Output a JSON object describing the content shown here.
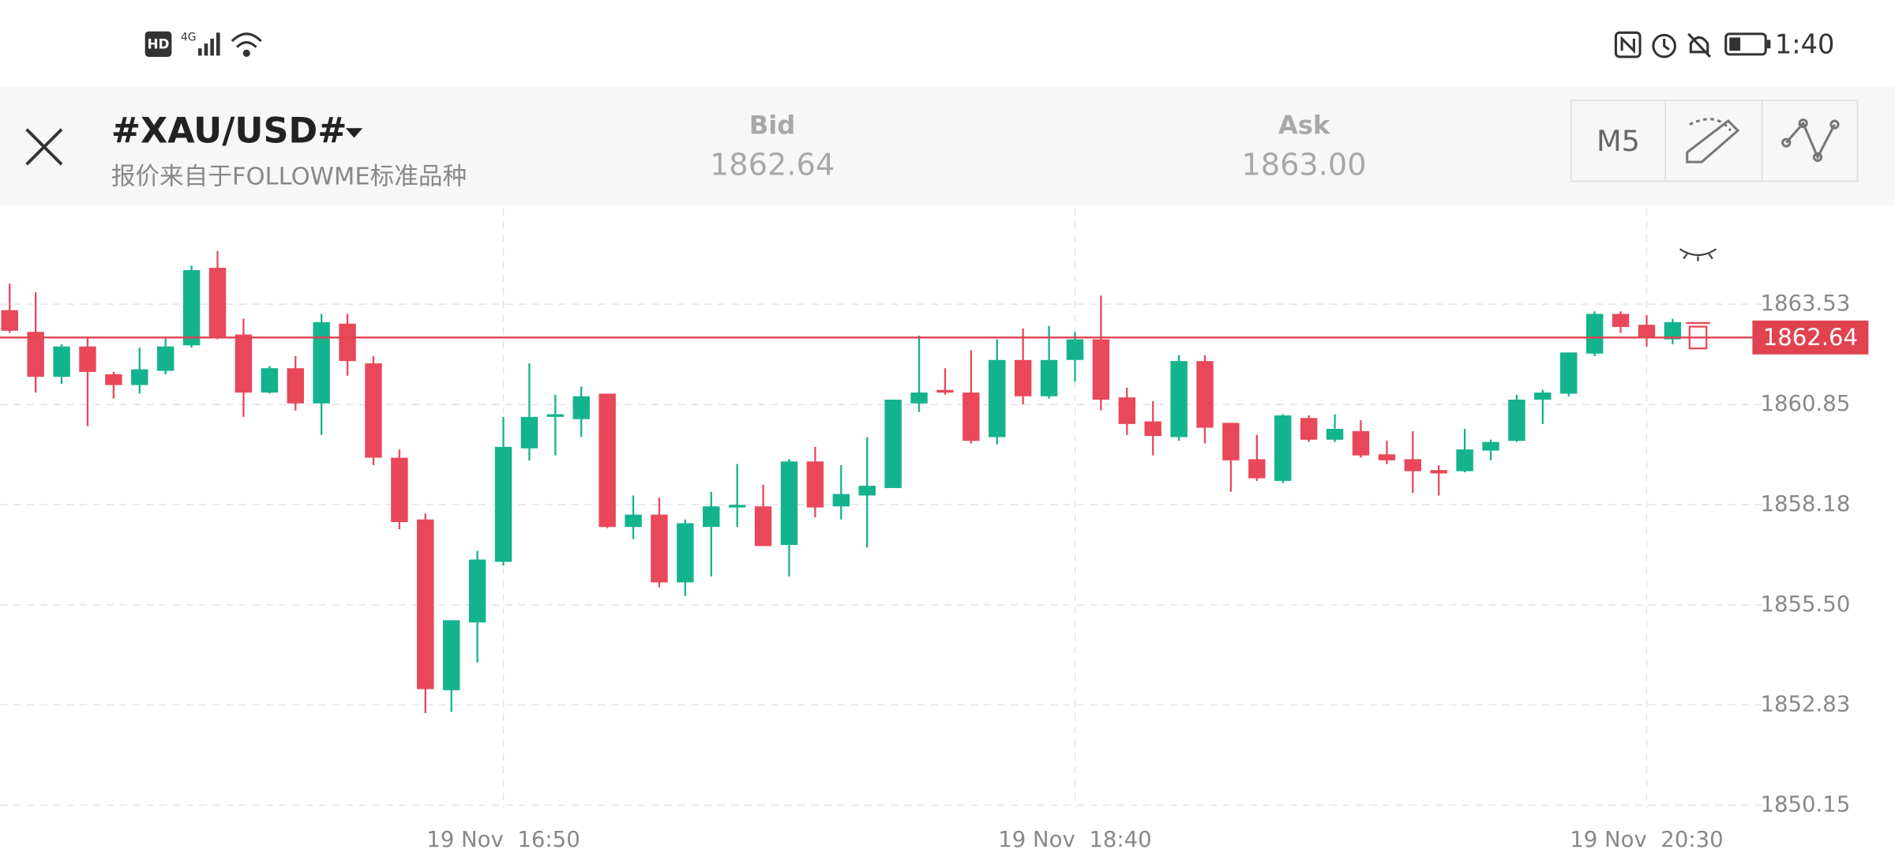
{
  "status_bar": {
    "hd": "HD",
    "network": "4G",
    "time": "1:40"
  },
  "header": {
    "symbol": "#XAU/USD#",
    "subtitle": "报价来自于FOLLOWME标准品种",
    "bid_label": "Bid",
    "bid": "1862.64",
    "ask_label": "Ask",
    "ask": "1863.00",
    "timeframe": "M5"
  },
  "chart_data": {
    "type": "candlestick",
    "categories": [
      null,
      null,
      null,
      null,
      null,
      null,
      null,
      null,
      null,
      null,
      null,
      null,
      null,
      null,
      null,
      null,
      null,
      null,
      null,
      "19 Nov  16:50",
      null,
      null,
      null,
      null,
      null,
      null,
      null,
      null,
      null,
      null,
      null,
      null,
      null,
      null,
      null,
      null,
      null,
      null,
      null,
      null,
      null,
      "19 Nov  18:40",
      null,
      null,
      null,
      null,
      null,
      null,
      null,
      null,
      null,
      null,
      null,
      null,
      null,
      null,
      null,
      null,
      null,
      null,
      null,
      null,
      null,
      "19 Nov  20:30",
      null
    ],
    "open": [
      1863.37,
      1862.79,
      1861.59,
      1862.4,
      1861.66,
      1861.37,
      1861.75,
      1862.43,
      1864.5,
      1862.72,
      1861.17,
      1861.82,
      1860.88,
      1863.01,
      1861.95,
      1859.43,
      1857.78,
      1853.22,
      1855.03,
      1856.65,
      1859.68,
      1860.52,
      1860.46,
      1861.14,
      1857.58,
      1857.91,
      1856.1,
      1857.58,
      1858.1,
      1858.13,
      1857.1,
      1859.33,
      1858.13,
      1858.42,
      1858.62,
      1860.88,
      1861.24,
      1861.17,
      1859.98,
      1862.04,
      1861.07,
      1862.04,
      1862.59,
      1861.04,
      1860.4,
      1859.98,
      1862.01,
      1860.36,
      1859.39,
      1858.81,
      1860.49,
      1859.91,
      1860.14,
      1859.52,
      1859.39,
      1859.1,
      1859.07,
      1859.62,
      1859.88,
      1860.98,
      1861.14,
      1862.21,
      1863.27,
      1862.98,
      1862.59
    ],
    "high": [
      1864.08,
      1863.85,
      1862.46,
      1862.63,
      1861.72,
      1862.37,
      1862.63,
      1864.56,
      1864.95,
      1863.14,
      1861.88,
      1862.14,
      1863.27,
      1863.27,
      1862.14,
      1859.65,
      1857.94,
      1855.09,
      1856.94,
      1860.52,
      1861.95,
      1861.11,
      1861.33,
      1861.14,
      1858.42,
      1858.36,
      1857.78,
      1858.52,
      1859.26,
      1858.71,
      1859.39,
      1859.72,
      1859.23,
      1859.98,
      1860.98,
      1862.69,
      1861.82,
      1862.3,
      1862.59,
      1862.88,
      1862.95,
      1862.79,
      1863.76,
      1861.3,
      1860.94,
      1862.17,
      1862.17,
      1860.36,
      1860.04,
      1860.59,
      1860.56,
      1860.59,
      1860.43,
      1859.88,
      1860.14,
      1859.23,
      1860.2,
      1859.91,
      1861.11,
      1861.24,
      1862.24,
      1863.34,
      1863.34,
      1863.24,
      1863.14
    ],
    "low": [
      1862.76,
      1861.17,
      1861.4,
      1860.27,
      1861.01,
      1861.14,
      1861.66,
      1862.37,
      1862.59,
      1860.52,
      1861.14,
      1860.69,
      1860.04,
      1861.62,
      1859.23,
      1857.52,
      1852.61,
      1852.64,
      1853.96,
      1856.55,
      1859.36,
      1859.49,
      1859.98,
      1857.55,
      1857.26,
      1855.97,
      1855.74,
      1856.26,
      1857.58,
      1857.07,
      1856.26,
      1857.84,
      1857.78,
      1857.03,
      1858.62,
      1860.65,
      1861.11,
      1859.81,
      1859.78,
      1860.85,
      1861.01,
      1861.46,
      1860.69,
      1860.04,
      1859.49,
      1859.88,
      1859.81,
      1858.52,
      1858.81,
      1858.75,
      1859.85,
      1859.85,
      1859.43,
      1859.26,
      1858.49,
      1858.42,
      1859.04,
      1859.36,
      1859.85,
      1860.33,
      1861.07,
      1862.14,
      1862.76,
      1862.4,
      1862.46
    ],
    "close": [
      1862.82,
      1861.59,
      1862.4,
      1861.72,
      1861.37,
      1861.79,
      1862.4,
      1864.44,
      1862.66,
      1861.17,
      1861.82,
      1860.88,
      1863.05,
      1862.01,
      1859.43,
      1857.71,
      1853.25,
      1855.09,
      1856.71,
      1859.72,
      1860.52,
      1860.59,
      1861.07,
      1857.58,
      1857.91,
      1856.1,
      1857.68,
      1858.13,
      1858.17,
      1857.07,
      1859.33,
      1858.1,
      1858.46,
      1858.68,
      1860.98,
      1861.17,
      1861.17,
      1859.88,
      1862.04,
      1861.07,
      1862.04,
      1862.59,
      1860.98,
      1860.33,
      1860.01,
      1862.01,
      1860.23,
      1859.36,
      1858.88,
      1860.56,
      1859.91,
      1860.2,
      1859.49,
      1859.36,
      1859.07,
      1859.01,
      1859.65,
      1859.85,
      1860.98,
      1861.17,
      1862.24,
      1863.27,
      1862.92,
      1862.63,
      1863.05
    ],
    "up_color": "#13b38e",
    "down_color": "#e8485a",
    "current_price": 1862.64,
    "current_price_color": "#e0434f",
    "ylim": [
      1849.7,
      1866.1
    ],
    "yticks": [
      1850.15,
      1852.83,
      {
        "value": 1855.5,
        "label": "1855.50"
      },
      1858.18,
      1860.85,
      1863.53
    ],
    "grid": true
  }
}
